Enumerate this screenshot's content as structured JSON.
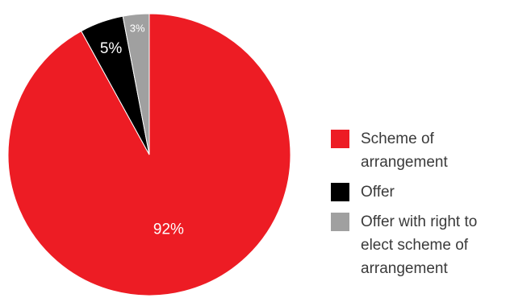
{
  "chart_data": {
    "type": "pie",
    "title": "",
    "start_angle_deg": 0,
    "direction": "clockwise",
    "slices": [
      {
        "name": "Scheme of arrangement",
        "value": 92,
        "label": "92%",
        "color": "#ed1c24"
      },
      {
        "name": "Offer",
        "value": 5,
        "label": "5%",
        "color": "#000000"
      },
      {
        "name": "Offer with right to elect scheme of arrangement",
        "value": 3,
        "label": "3%",
        "color": "#a0a0a0"
      }
    ],
    "legend": {
      "placement": "right",
      "items": [
        {
          "text": "Scheme of arrangement",
          "color": "#ed1c24"
        },
        {
          "text": "Offer",
          "color": "#000000"
        },
        {
          "text": "Offer with right to elect scheme of arrangement",
          "color": "#a0a0a0"
        }
      ]
    }
  }
}
